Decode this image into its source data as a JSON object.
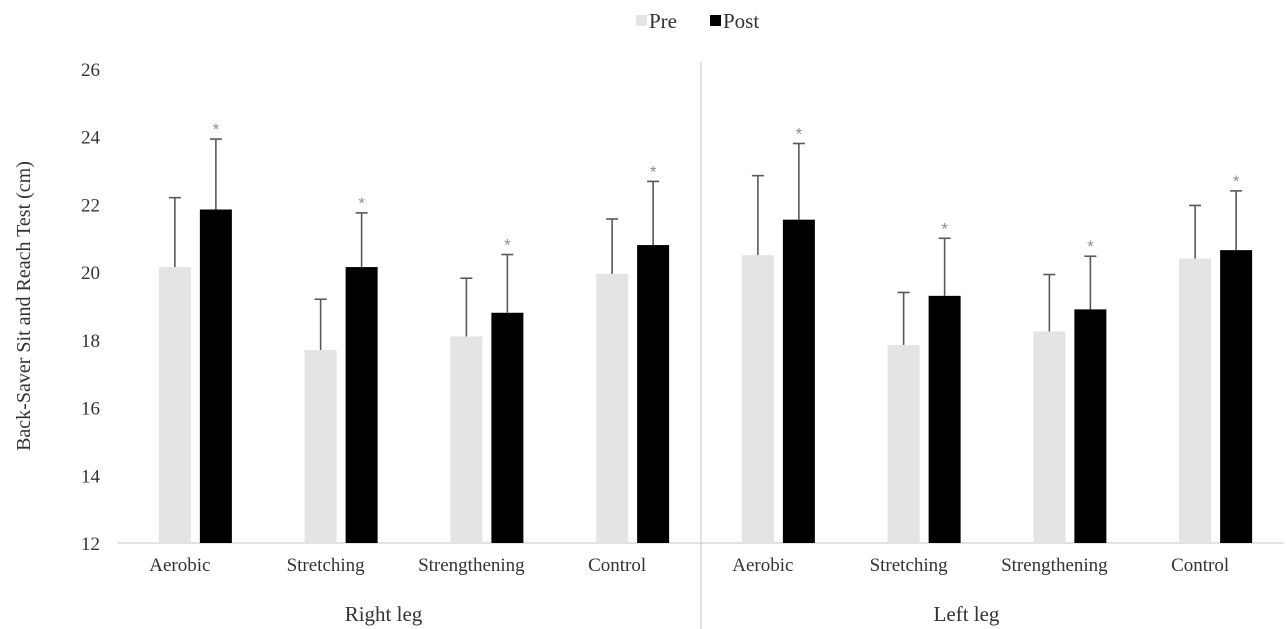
{
  "chart_data": {
    "type": "bar",
    "title": "",
    "ylabel": "Back-Saver Sit and Reach Test (cm)",
    "ylim": [
      12,
      26
    ],
    "yticks": [
      "12",
      "14",
      "16",
      "18",
      "20",
      "22",
      "24",
      "26"
    ],
    "legend_position": "top",
    "groups": [
      {
        "label": "Right leg",
        "categories": [
          "Aerobic",
          "Stretching",
          "Strengthening",
          "Control"
        ]
      },
      {
        "label": "Left leg",
        "categories": [
          "Aerobic",
          "Stretching",
          "Strengthening",
          "Control"
        ]
      }
    ],
    "series": [
      {
        "name": "Pre",
        "color": "#e4e4e4",
        "values": [
          20.15,
          17.7,
          18.1,
          19.95,
          20.5,
          17.85,
          18.25,
          20.4
        ],
        "error": [
          2.05,
          1.5,
          1.72,
          1.62,
          2.35,
          1.55,
          1.68,
          1.57
        ]
      },
      {
        "name": "Post",
        "color": "#000000",
        "values": [
          21.85,
          20.15,
          18.8,
          20.8,
          21.55,
          19.3,
          18.9,
          20.65
        ],
        "error": [
          2.08,
          1.6,
          1.72,
          1.88,
          2.25,
          1.7,
          1.57,
          1.75
        ],
        "significance": [
          "*",
          "*",
          "*",
          "*",
          "*",
          "*",
          "*",
          "*"
        ]
      }
    ]
  }
}
